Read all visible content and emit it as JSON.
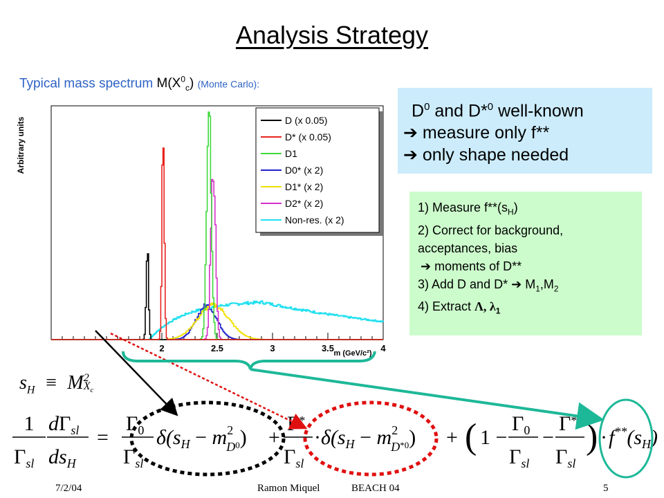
{
  "title": "Analysis Strategy",
  "subtitle": {
    "text": "Typical mass spectrum",
    "mass_symbol": "M(X",
    "sup": "0",
    "sub": "c",
    "close": ")",
    "note": "(Monte Carlo):"
  },
  "info_box": {
    "line1": "D0 and D*0 well-known",
    "line1_parts": {
      "a": "D",
      "a_sup": "0",
      "b": " and D*",
      "b_sup": "0",
      "c": " well-known"
    },
    "line2": "measure only f**",
    "line3": "only shape needed",
    "arrow": "➔"
  },
  "steps": [
    "1) Measure f**(sH)",
    "2) Correct for background,",
    "acceptances, bias",
    "moments of D**",
    "3) Add D and D* ➔ M1,M2",
    "4) Extract Λ, λ1"
  ],
  "steps_parts": {
    "s1a": "1) Measure f**(s",
    "s1sub": "H",
    "s1b": ")",
    "s2": "2) Correct for background,",
    "s3": "acceptances, bias",
    "s4": "moments of D**",
    "s5a": "3) Add D and D* ",
    "s5b": " M",
    "s5sub1": "1",
    "s5c": ",M",
    "s5sub2": "2",
    "s6a": "4) Extract ",
    "s6b": "Λ, λ",
    "s6sub": "1"
  },
  "equations": {
    "sh_def": "sH ≡ M²Xc",
    "main": "(1/Γsl) dΓsl/dsH = (Γ0/Γsl) δ(sH − m²D0) + (Γ*/Γsl) δ(sH − m²D*0) + (1 − Γ0/Γsl − Γ*/Γsl) · f**(sH)"
  },
  "footer": {
    "date": "7/2/04",
    "author": "Ramon Miquel",
    "conference": "BEACH 04",
    "page": "5"
  },
  "chart_data": {
    "type": "line",
    "xlabel": "m (GeV/c²)",
    "ylabel": "Arbitrary units",
    "xlim": [
      1.0,
      4.0
    ],
    "x_ticks": [
      "2",
      "2.5",
      "3",
      "3.5",
      "4"
    ],
    "legend_position": "top-right",
    "series": [
      {
        "name": "D (x 0.05)",
        "color": "#000000",
        "peak_x": 1.865,
        "peak_rel": 0.39,
        "width": 0.015
      },
      {
        "name": "D* (x 0.05)",
        "color": "#e8231d",
        "peak_x": 2.007,
        "peak_rel": 0.91,
        "width": 0.015
      },
      {
        "name": "D1",
        "color": "#3ed83a",
        "peak_x": 2.422,
        "peak_rel": 0.99,
        "width": 0.03
      },
      {
        "name": "D0* (x 2)",
        "color": "#2222cc",
        "peak_x": 2.4,
        "peak_rel": 0.15,
        "width": 0.13
      },
      {
        "name": "D1* (x 2)",
        "color": "#f0e000",
        "peak_x": 2.46,
        "peak_rel": 0.15,
        "width": 0.2
      },
      {
        "name": "D2* (x 2)",
        "color": "#d42fc8",
        "peak_x": 2.459,
        "peak_rel": 0.77,
        "width": 0.03
      },
      {
        "name": "Non-res. (x 2)",
        "color": "#22e0f0",
        "peak_x": 2.75,
        "peak_rel": 0.17,
        "width": 1.3
      }
    ]
  }
}
